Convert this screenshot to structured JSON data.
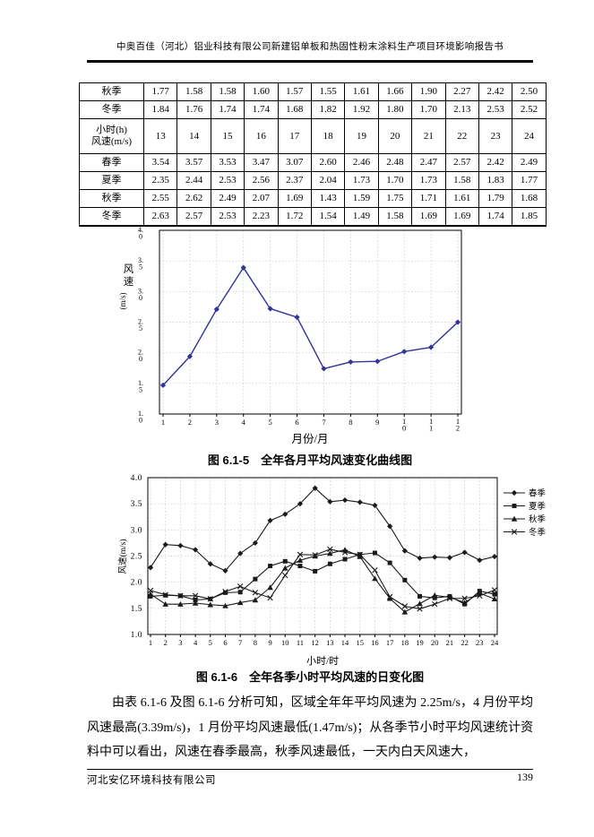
{
  "page": {
    "header_title": "中奥百佳（河北）铝业科技有限公司新建铝单板和热固性粉末涂料生产项目环境影响报告书",
    "footer_company": "河北安亿环境科技有限公司",
    "page_number": "139"
  },
  "table": {
    "rows_top": [
      {
        "label": "秋季",
        "values": [
          "1.77",
          "1.58",
          "1.58",
          "1.60",
          "1.57",
          "1.55",
          "1.61",
          "1.66",
          "1.90",
          "2.27",
          "2.42",
          "2.50"
        ]
      },
      {
        "label": "冬季",
        "values": [
          "1.84",
          "1.76",
          "1.74",
          "1.74",
          "1.68",
          "1.82",
          "1.92",
          "1.80",
          "1.70",
          "2.13",
          "2.53",
          "2.52"
        ]
      }
    ],
    "header_label_line1": "小时(h)",
    "header_label_line2": "风速(m/s)",
    "header_hours": [
      "13",
      "14",
      "15",
      "16",
      "17",
      "18",
      "19",
      "20",
      "21",
      "22",
      "23",
      "24"
    ],
    "rows_bottom": [
      {
        "label": "春季",
        "values": [
          "3.54",
          "3.57",
          "3.53",
          "3.47",
          "3.07",
          "2.60",
          "2.46",
          "2.48",
          "2.47",
          "2.57",
          "2.42",
          "2.49"
        ]
      },
      {
        "label": "夏季",
        "values": [
          "2.35",
          "2.44",
          "2.53",
          "2.56",
          "2.37",
          "2.04",
          "1.73",
          "1.70",
          "1.73",
          "1.58",
          "1.83",
          "1.77"
        ]
      },
      {
        "label": "秋季",
        "values": [
          "2.55",
          "2.62",
          "2.49",
          "2.07",
          "1.69",
          "1.43",
          "1.59",
          "1.75",
          "1.71",
          "1.61",
          "1.79",
          "1.68"
        ]
      },
      {
        "label": "冬季",
        "values": [
          "2.63",
          "2.57",
          "2.53",
          "2.23",
          "1.72",
          "1.54",
          "1.49",
          "1.58",
          "1.69",
          "1.69",
          "1.74",
          "1.85"
        ]
      }
    ]
  },
  "chart_data": [
    {
      "type": "line",
      "caption": "图 6.1-5　全年各月平均风速变化曲线图",
      "xlabel": "月份/月",
      "ylabel": "风速(m/s)",
      "x": [
        "1",
        "2",
        "3",
        "4",
        "5",
        "6",
        "7",
        "8",
        "9",
        "10",
        "11",
        "12"
      ],
      "values": [
        1.47,
        1.94,
        2.71,
        3.39,
        2.72,
        2.58,
        1.74,
        1.85,
        1.86,
        2.02,
        2.09,
        2.5
      ],
      "ylim": [
        1.0,
        4.0
      ],
      "ytick_step": 0.5,
      "grid": true,
      "marker": "diamond",
      "line_color": "#333399"
    },
    {
      "type": "line",
      "caption": "图 6.1-6　全年各季小时平均风速的日变化图",
      "xlabel": "小时/时",
      "ylabel": "风速(m/s)",
      "x": [
        "1",
        "2",
        "3",
        "4",
        "5",
        "6",
        "7",
        "8",
        "9",
        "10",
        "11",
        "12",
        "13",
        "14",
        "15",
        "16",
        "17",
        "18",
        "19",
        "20",
        "21",
        "22",
        "23",
        "24"
      ],
      "series": [
        {
          "name": "春季",
          "marker": "diamond",
          "values": [
            2.28,
            2.72,
            2.7,
            2.62,
            2.35,
            2.22,
            2.55,
            2.75,
            3.18,
            3.3,
            3.5,
            3.8,
            3.54,
            3.57,
            3.53,
            3.47,
            3.07,
            2.6,
            2.46,
            2.48,
            2.47,
            2.57,
            2.42,
            2.49
          ]
        },
        {
          "name": "夏季",
          "marker": "square",
          "values": [
            1.73,
            1.75,
            1.74,
            1.66,
            1.68,
            1.8,
            1.81,
            2.06,
            2.31,
            2.4,
            2.31,
            2.21,
            2.35,
            2.44,
            2.53,
            2.56,
            2.37,
            2.04,
            1.73,
            1.7,
            1.73,
            1.58,
            1.83,
            1.77
          ]
        },
        {
          "name": "秋季",
          "marker": "triangle",
          "values": [
            1.77,
            1.58,
            1.58,
            1.6,
            1.57,
            1.55,
            1.61,
            1.66,
            1.9,
            2.27,
            2.42,
            2.5,
            2.55,
            2.62,
            2.49,
            2.07,
            1.69,
            1.43,
            1.59,
            1.75,
            1.71,
            1.61,
            1.79,
            1.68
          ]
        },
        {
          "name": "冬季",
          "marker": "x",
          "values": [
            1.84,
            1.76,
            1.74,
            1.74,
            1.68,
            1.82,
            1.92,
            1.8,
            1.7,
            2.13,
            2.53,
            2.52,
            2.63,
            2.57,
            2.53,
            2.23,
            1.72,
            1.54,
            1.49,
            1.58,
            1.69,
            1.69,
            1.74,
            1.85
          ]
        }
      ],
      "ylim": [
        1.0,
        4.0
      ],
      "ytick_step": 0.5,
      "grid": true,
      "legend_position": "right",
      "line_color": "#1a1a1a"
    }
  ],
  "paragraph": {
    "text": "由表 6.1-6 及图 6.1-6 分析可知，区域全年年平均风速为 2.25m/s，4 月份平均风速最高(3.39m/s)，1 月份平均风速最低(1.47m/s)；从各季节小时平均风速统计资料中可以看出，风速在春季最高，秋季风速最低，一天内白天风速大，"
  }
}
